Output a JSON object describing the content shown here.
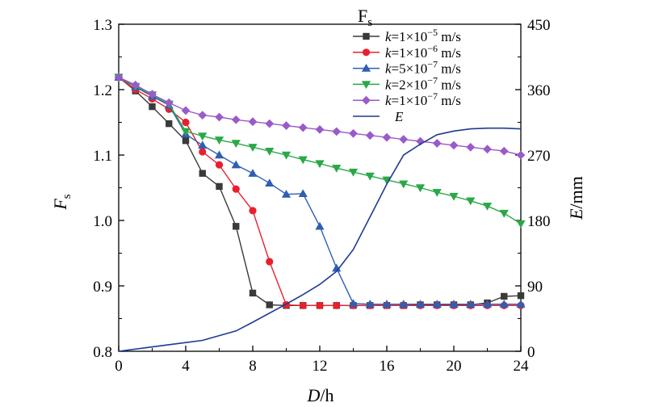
{
  "chart_data": {
    "type": "line",
    "xlabel": {
      "var": "D",
      "unit": "/h"
    },
    "ylabel_left": {
      "var": "F",
      "sub": "s"
    },
    "ylabel_right": {
      "var": "E",
      "unit": "/mm"
    },
    "legend_title": {
      "var": "F",
      "sub": "s"
    },
    "legend_position": "top-right",
    "grid": false,
    "xlim": [
      0,
      24
    ],
    "ylim_left": [
      0.8,
      1.3
    ],
    "ylim_right": [
      0,
      450
    ],
    "xticks": [
      0,
      4,
      8,
      12,
      16,
      20,
      24
    ],
    "yticks_left": [
      "0.8",
      "0.9",
      "1.0",
      "1.1",
      "1.2",
      "1.3"
    ],
    "yticks_right": [
      "0",
      "90",
      "180",
      "270",
      "360",
      "450"
    ],
    "x": [
      0,
      1,
      2,
      3,
      4,
      5,
      6,
      7,
      8,
      9,
      10,
      11,
      12,
      13,
      14,
      15,
      16,
      17,
      18,
      19,
      20,
      21,
      22,
      23,
      24
    ],
    "series": [
      {
        "name": "k=1×10−5 m/s",
        "legend": {
          "var": "k",
          "mant": "=1×10",
          "exp": "−5",
          "unit": " m/s"
        },
        "axis": "left",
        "color": "#3a3a3a",
        "marker": "square",
        "values": [
          1.219,
          1.198,
          1.174,
          1.148,
          1.122,
          1.072,
          1.052,
          0.991,
          0.889,
          0.871,
          0.87,
          0.87,
          0.87,
          0.87,
          0.87,
          0.87,
          0.87,
          0.87,
          0.871,
          0.871,
          0.871,
          0.871,
          0.874,
          0.884,
          0.885
        ]
      },
      {
        "name": "k=1×10−6 m/s",
        "legend": {
          "var": "k",
          "mant": "=1×10",
          "exp": "−6",
          "unit": " m/s"
        },
        "axis": "left",
        "color": "#e8202e",
        "marker": "circle",
        "values": [
          1.219,
          1.2,
          1.186,
          1.17,
          1.15,
          1.105,
          1.085,
          1.048,
          1.015,
          0.937,
          0.871,
          0.87,
          0.87,
          0.87,
          0.87,
          0.87,
          0.87,
          0.87,
          0.87,
          0.87,
          0.87,
          0.87,
          0.87,
          0.87,
          0.87
        ]
      },
      {
        "name": "k=5×10−7 m/s",
        "legend": {
          "var": "k",
          "mant": "=5×10",
          "exp": "−7",
          "unit": " m/s"
        },
        "axis": "left",
        "color": "#2e5fb5",
        "marker": "triangle-up",
        "values": [
          1.219,
          1.204,
          1.19,
          1.176,
          1.132,
          1.115,
          1.1,
          1.085,
          1.072,
          1.057,
          1.04,
          1.041,
          0.991,
          0.927,
          0.873,
          0.872,
          0.872,
          0.872,
          0.872,
          0.872,
          0.872,
          0.872,
          0.872,
          0.872,
          0.872
        ]
      },
      {
        "name": "k=2×10−7 m/s",
        "legend": {
          "var": "k",
          "mant": "=2×10",
          "exp": "−7",
          "unit": " m/s"
        },
        "axis": "left",
        "color": "#2aa847",
        "marker": "triangle-down",
        "values": [
          1.219,
          1.205,
          1.192,
          1.178,
          1.136,
          1.129,
          1.123,
          1.118,
          1.112,
          1.106,
          1.1,
          1.093,
          1.087,
          1.08,
          1.074,
          1.068,
          1.062,
          1.056,
          1.05,
          1.043,
          1.037,
          1.03,
          1.022,
          1.011,
          0.995
        ]
      },
      {
        "name": "k=1×10−7 m/s",
        "legend": {
          "var": "k",
          "mant": "=1×10",
          "exp": "−7",
          "unit": " m/s"
        },
        "axis": "left",
        "color": "#9a5ac8",
        "marker": "diamond",
        "values": [
          1.219,
          1.207,
          1.193,
          1.18,
          1.168,
          1.161,
          1.158,
          1.154,
          1.151,
          1.148,
          1.145,
          1.142,
          1.139,
          1.136,
          1.133,
          1.13,
          1.127,
          1.124,
          1.121,
          1.118,
          1.115,
          1.112,
          1.109,
          1.106,
          1.1
        ]
      },
      {
        "name": "E",
        "legend": {
          "var": "E"
        },
        "axis": "right",
        "color": "#1f3a93",
        "marker": "none",
        "x": [
          0,
          2,
          4,
          5,
          7,
          8,
          10,
          11,
          12,
          13,
          14,
          15,
          16,
          17,
          18,
          19,
          20,
          21,
          22,
          23,
          24
        ],
        "values": [
          0,
          6,
          12,
          15,
          28,
          40,
          65,
          78,
          92,
          110,
          140,
          185,
          230,
          270,
          285,
          298,
          303,
          306,
          307,
          307,
          306
        ]
      }
    ]
  }
}
